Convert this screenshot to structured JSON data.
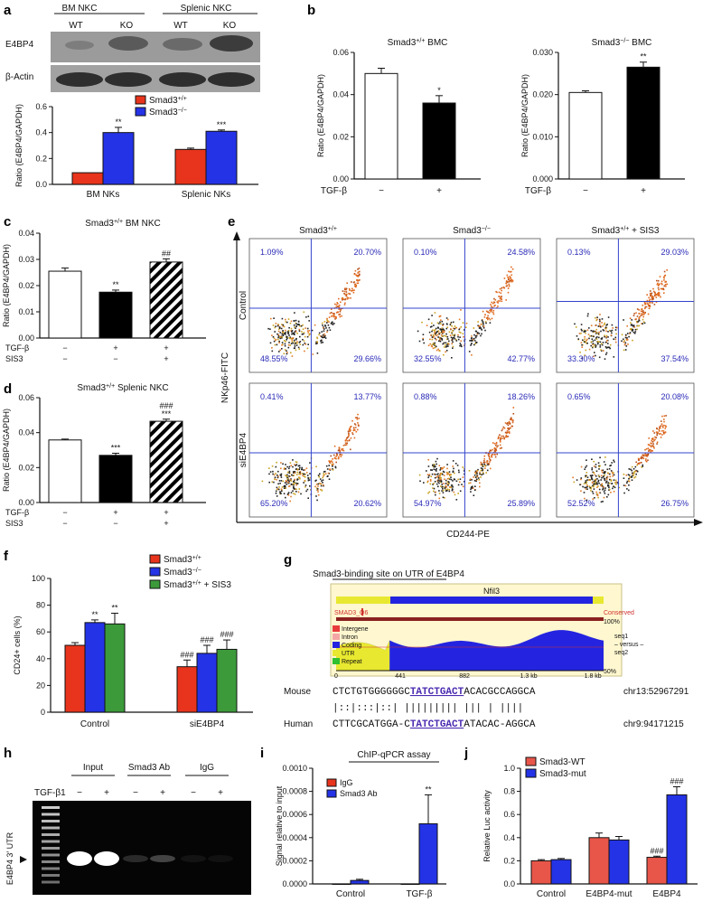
{
  "panels": {
    "a": {
      "label": "a",
      "blot": {
        "groups": [
          "BM NKC",
          "Splenic NKC"
        ],
        "lanes": [
          "WT",
          "KO",
          "WT",
          "KO"
        ],
        "rows": [
          "E4BP4",
          "β-Actin"
        ]
      },
      "chart_data": {
        "type": "bar",
        "categories": [
          "BM NKs",
          "Splenic NKs"
        ],
        "series": [
          {
            "name": "Smad3+/+",
            "values": [
              0.09,
              0.27
            ],
            "err": [
              0.0,
              0.01
            ],
            "color": "#e8341c"
          },
          {
            "name": "Smad3−/−",
            "values": [
              0.4,
              0.41
            ],
            "err": [
              0.04,
              0.01
            ],
            "color": "#2433e6"
          }
        ],
        "annotations": [
          "**",
          "***"
        ],
        "ylabel": "Ratio (E4BP4/GAPDH)",
        "ylim": [
          0,
          0.6
        ],
        "yticks": [
          "0.0",
          "0.2",
          "0.4",
          "0.6"
        ]
      }
    },
    "b": {
      "label": "b",
      "chart_data": [
        {
          "type": "bar",
          "title": "Smad3+/+ BMC",
          "categories": [
            "−",
            "+"
          ],
          "values": [
            0.05,
            0.036
          ],
          "err": [
            0.0025,
            0.0035
          ],
          "fills": [
            "#ffffff",
            "#000000"
          ],
          "annotations": [
            "",
            "*"
          ],
          "ylabel": "Ratio (E4BP4/GAPDH)",
          "row_label": "TGF-β",
          "ylim": [
            0,
            0.06
          ],
          "yticks": [
            "0.00",
            "0.02",
            "0.04",
            "0.06"
          ]
        },
        {
          "type": "bar",
          "title": "Smad3−/− BMC",
          "categories": [
            "−",
            "+"
          ],
          "values": [
            0.0205,
            0.0265
          ],
          "err": [
            0.0004,
            0.0012
          ],
          "fills": [
            "#ffffff",
            "#000000"
          ],
          "annotations": [
            "",
            "**"
          ],
          "ylabel": "Ratio (E4BP4/GAPDH)",
          "row_label": "TGF-β",
          "ylim": [
            0,
            0.03
          ],
          "yticks": [
            "0.000",
            "0.010",
            "0.020",
            "0.030"
          ]
        }
      ]
    },
    "c": {
      "label": "c",
      "chart_data": {
        "type": "bar",
        "title": "Smad3+/+ BM NKC",
        "categories": [
          "1",
          "2",
          "3"
        ],
        "values": [
          0.0255,
          0.0175,
          0.029
        ],
        "err": [
          0.0012,
          0.0008,
          0.0012
        ],
        "fills": [
          "#ffffff",
          "#000000",
          "hatch"
        ],
        "annotations": [
          "",
          "**",
          "##"
        ],
        "ylabel": "Ratio (E4BP4/GAPDH)",
        "ylim": [
          0,
          0.04
        ],
        "yticks": [
          "0.00",
          "0.01",
          "0.02",
          "0.03",
          "0.04"
        ],
        "conditions": [
          {
            "name": "TGF-β",
            "values": [
              "−",
              "+",
              "+"
            ]
          },
          {
            "name": "SIS3",
            "values": [
              "−",
              "−",
              "+"
            ]
          }
        ]
      }
    },
    "d": {
      "label": "d",
      "chart_data": {
        "type": "bar",
        "title": "Smad3+/+ Splenic NKC",
        "categories": [
          "1",
          "2",
          "3"
        ],
        "values": [
          0.0358,
          0.027,
          0.0465
        ],
        "err": [
          0.0005,
          0.0012,
          0.0012
        ],
        "fills": [
          "#ffffff",
          "#000000",
          "hatch"
        ],
        "annotations": [
          "",
          "***",
          "###\n***"
        ],
        "ylabel": "Ratio (E4BP4/GAPDH)",
        "ylim": [
          0,
          0.06
        ],
        "yticks": [
          "0.00",
          "0.02",
          "0.04",
          "0.06"
        ],
        "conditions": [
          {
            "name": "TGF-β",
            "values": [
              "−",
              "+",
              "+"
            ]
          },
          {
            "name": "SIS3",
            "values": [
              "−",
              "−",
              "+"
            ]
          }
        ]
      }
    },
    "e": {
      "label": "e",
      "xlabel": "CD244-PE",
      "ylabel": "NKp46-FITC",
      "columns": [
        "Smad3+/+",
        "Smad3−/−",
        "Smad3+/+ + SIS3"
      ],
      "rows": [
        "Control",
        "siE4BP4"
      ],
      "quadrants": [
        [
          {
            "ul": "1.09%",
            "ur": "20.70%",
            "ll": "48.55%",
            "lr": "29.66%"
          },
          {
            "ul": "0.10%",
            "ur": "24.58%",
            "ll": "32.55%",
            "lr": "42.77%"
          },
          {
            "ul": "0.13%",
            "ur": "29.03%",
            "ll": "33.30%",
            "lr": "37.54%"
          }
        ],
        [
          {
            "ul": "0.41%",
            "ur": "13.77%",
            "ll": "65.20%",
            "lr": "20.62%"
          },
          {
            "ul": "0.88%",
            "ur": "18.26%",
            "ll": "54.97%",
            "lr": "25.89%"
          },
          {
            "ul": "0.65%",
            "ur": "20.08%",
            "ll": "52.52%",
            "lr": "26.75%"
          }
        ]
      ]
    },
    "f": {
      "label": "f",
      "chart_data": {
        "type": "bar",
        "categories": [
          "Control",
          "siE4BP4"
        ],
        "series": [
          {
            "name": "Smad3+/+",
            "values": [
              50,
              34
            ],
            "err": [
              2,
              5
            ],
            "color": "#e8341c"
          },
          {
            "name": "Smad3−/−",
            "values": [
              67,
              44
            ],
            "err": [
              2,
              6
            ],
            "color": "#2433e6"
          },
          {
            "name": "Smad3+/+ + SIS3",
            "values": [
              66,
              47
            ],
            "err": [
              8,
              7
            ],
            "color": "#3c9a3a"
          }
        ],
        "annotations": [
          [
            "",
            "**",
            "**"
          ],
          [
            "###",
            "###",
            "###"
          ]
        ],
        "ylabel": "CD24+ cells (%)",
        "ylim": [
          0,
          100
        ],
        "yticks": [
          "0",
          "20",
          "40",
          "60",
          "80",
          "100"
        ]
      }
    },
    "g": {
      "label": "g",
      "title": "Smad3-binding site on UTR of E4BP4",
      "gene": "Nfil3",
      "track_left": "SMAD3_Q6",
      "track_right": "Conserved",
      "pct_top": "100%",
      "pct_bottom": "50%",
      "legend": [
        {
          "name": "Intergene",
          "color": "#e83c3c"
        },
        {
          "name": "Intron",
          "color": "#f4a6a6"
        },
        {
          "name": "Coding",
          "color": "#2424e0"
        },
        {
          "name": "UTR",
          "color": "#e8e830"
        },
        {
          "name": "Repeat",
          "color": "#30c030"
        }
      ],
      "axis": [
        "0",
        "441",
        "882",
        "1.3 kb",
        "1.8 kb"
      ],
      "seq_side": [
        "seq1",
        "– versus –",
        "seq2"
      ],
      "alignment": {
        "mouse_label": "Mouse",
        "mouse_pre": "CTCTGTGGGGGGC",
        "mouse_site": "TATCTGACT",
        "mouse_post": "ACACGCCAGGCA",
        "mouse_loc": "chr13:52967291",
        "match_line": "|::|:::|::|  |||||||||  ||| | |||| ",
        "human_label": "Human",
        "human_pre": "CTTCGCATGGA-C",
        "human_site": "TATCTGACT",
        "human_post": "ATACAC-AGGCA",
        "human_loc": "chr9:94171215"
      }
    },
    "h": {
      "label": "h",
      "groups": [
        "Input",
        "Smad3 Ab",
        "IgG"
      ],
      "row_label": "TGF-β1",
      "signs": [
        "−",
        "+",
        "−",
        "+",
        "−",
        "+"
      ],
      "ylabel": "E4BP4 3′ UTR",
      "band_intensity": [
        1.0,
        1.0,
        0.15,
        0.25,
        0.06,
        0.05
      ]
    },
    "i": {
      "label": "i",
      "chart_data": {
        "type": "bar",
        "title": "ChIP-qPCR assay",
        "categories": [
          "Control",
          "TGF-β"
        ],
        "series": [
          {
            "name": "IgG",
            "values": [
              0.0,
              0.0
            ],
            "err": [
              0,
              0
            ],
            "color": "#e8341c"
          },
          {
            "name": "Smad3 Ab",
            "values": [
              3e-05,
              0.00052
            ],
            "err": [
              1e-05,
              0.00025
            ],
            "color": "#2433e6"
          }
        ],
        "annotations": [
          "",
          "**"
        ],
        "ylabel": "Signal relative to input",
        "ylim": [
          0,
          0.001
        ],
        "yticks": [
          "0.0000",
          "0.0002",
          "0.0004",
          "0.0006",
          "0.0008",
          "0.0010"
        ]
      }
    },
    "j": {
      "label": "j",
      "chart_data": {
        "type": "bar",
        "categories": [
          "Control",
          "E4BP4-mut",
          "E4BP4"
        ],
        "series": [
          {
            "name": "Smad3-WT",
            "values": [
              0.2,
              0.4,
              0.23
            ],
            "err": [
              0.01,
              0.04,
              0.01
            ],
            "color": "#e8564a"
          },
          {
            "name": "Smad3-mut",
            "values": [
              0.21,
              0.38,
              0.77
            ],
            "err": [
              0.01,
              0.03,
              0.07
            ],
            "color": "#2433e6"
          }
        ],
        "annotations": [
          [
            "",
            ""
          ],
          [
            "",
            ""
          ],
          [
            "###",
            "###"
          ]
        ],
        "ylabel": "Relative Luc activity",
        "ylim": [
          0,
          1.0
        ],
        "yticks": [
          "0.0",
          "0.2",
          "0.4",
          "0.6",
          "0.8",
          "1.0"
        ]
      }
    }
  }
}
